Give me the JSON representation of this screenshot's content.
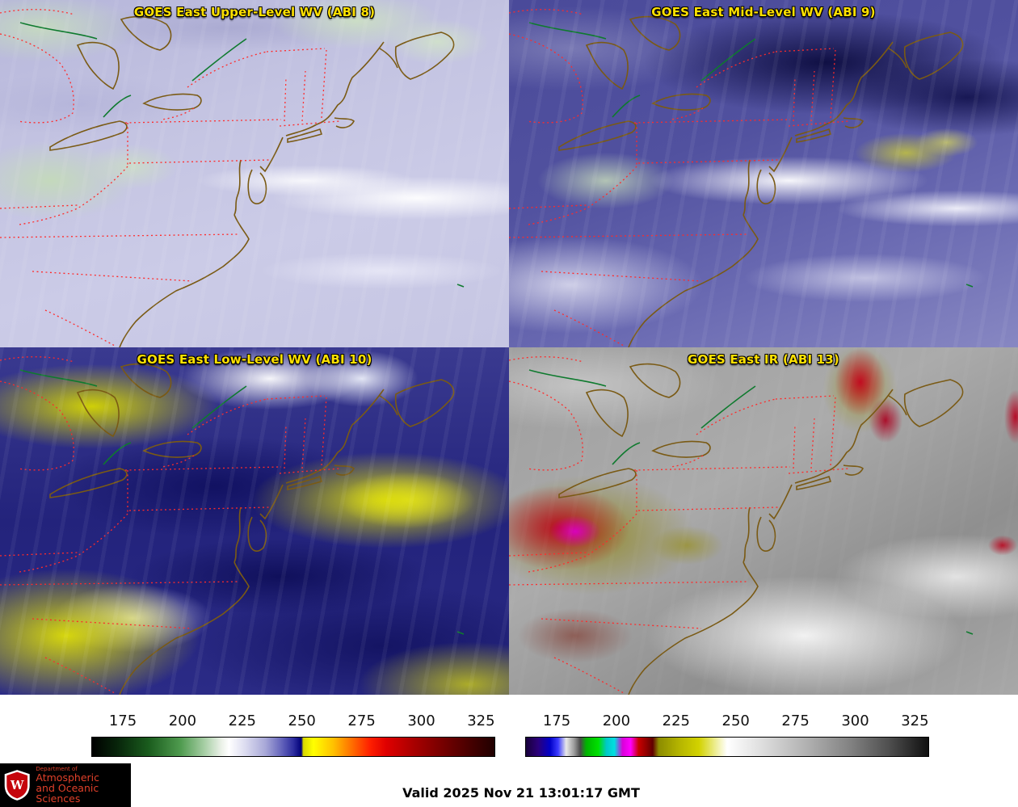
{
  "panels": [
    {
      "title": "GOES East Upper-Level WV (ABI 8)"
    },
    {
      "title": "GOES East Mid-Level WV (ABI 9)"
    },
    {
      "title": "GOES East Low-Level WV (ABI 10)"
    },
    {
      "title": "GOES East IR (ABI 13)"
    }
  ],
  "colorbars": {
    "wv": {
      "ticks": [
        "175",
        "200",
        "225",
        "250",
        "275",
        "300",
        "325"
      ]
    },
    "ir": {
      "ticks": [
        "175",
        "200",
        "225",
        "250",
        "275",
        "300",
        "325"
      ]
    }
  },
  "footer": {
    "valid_label": "Valid 2025 Nov 21 13:01:17 GMT",
    "logo": {
      "dept_line": "Department of",
      "name_line1": "Atmospheric",
      "name_line2": "and Oceanic Sciences",
      "monogram": "W"
    }
  },
  "colors": {
    "title_yellow": "#ffe100",
    "state_border_red": "#ff2a2a",
    "coastline_brown": "#7a5a14",
    "river_green": "#0e7a2e",
    "logo_red": "#e0402a"
  }
}
